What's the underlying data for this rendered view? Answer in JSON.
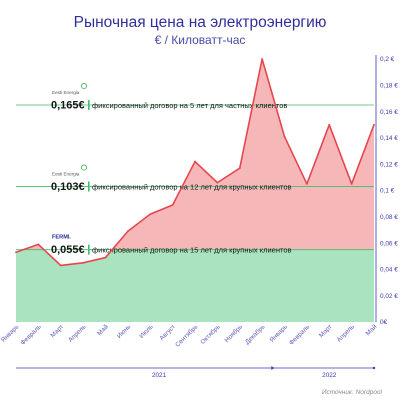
{
  "chart_data": {
    "type": "line",
    "title": "Рыночная цена на электроэнергию",
    "subtitle": "€ / Киловатт-час",
    "categories": [
      "Январь",
      "Февраль",
      "Март",
      "Апрель",
      "Май",
      "Июнь",
      "Июль",
      "Август",
      "Сентябрь",
      "Октябрь",
      "Ноябрь",
      "Декабрь",
      "Январь",
      "Февраль",
      "Март",
      "Апрель",
      "Май"
    ],
    "series": [
      {
        "values": [
          0.053,
          0.059,
          0.043,
          0.045,
          0.049,
          0.069,
          0.082,
          0.089,
          0.122,
          0.106,
          0.117,
          0.2,
          0.141,
          0.105,
          0.15,
          0.105,
          0.15
        ]
      }
    ],
    "ylim": [
      0,
      0.2
    ],
    "yticks": [
      "0€",
      "0,02 €",
      "0,04 €",
      "0,06 €",
      "0,08 €",
      "0,1 €",
      "0,12 €",
      "0,14 €",
      "0,16 €",
      "0,18 €",
      "0,2 €"
    ],
    "years": [
      {
        "label": "2021"
      },
      {
        "label": "2022"
      }
    ],
    "reference_lines": [
      {
        "value": 0.165,
        "brand": "Eesti Energia",
        "price_label": "0,165€",
        "description": "фиксированный договор на 5 лет для частных клиентов"
      },
      {
        "value": 0.103,
        "brand": "Eesti Energia",
        "price_label": "0,103€",
        "description": "фиксированный договор на 12 лет для крупных клиентов"
      },
      {
        "value": 0.055,
        "brand": "FERMI.",
        "price_label": "0,055€",
        "description": "фиксированный договор на 15 лет для крупных клиентов"
      }
    ],
    "colors": {
      "line": "#e5474f",
      "area_above": "#f6b7b9",
      "area_below": "#a9e3bf",
      "reference": "#3fbf6c",
      "axis": "#3a3ab0"
    },
    "source": "Источник: Nordpool"
  }
}
